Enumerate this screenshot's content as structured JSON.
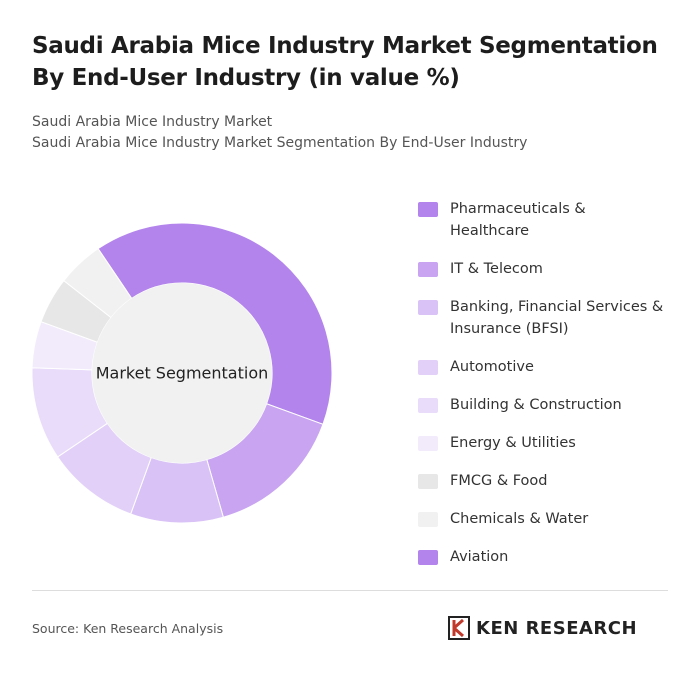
{
  "chart_data": {
    "type": "donut",
    "title": "Saudi Arabia Mice Industry Market Segmentation By End-User Industry (in value %)",
    "subtitle_lines": [
      "Saudi Arabia Mice Industry Market",
      "Saudi Arabia Mice Industry Market Segmentation By End-User Industry"
    ],
    "center_label": "Market Segmentation",
    "categories": [
      "Pharmaceuticals & Healthcare",
      "IT & Telecom",
      "Banking, Financial Services & Insurance (BFSI)",
      "Automotive",
      "Building & Construction",
      "Energy & Utilities",
      "FMCG & Food",
      "Chemicals & Water",
      "Aviation"
    ],
    "values": [
      40,
      15,
      10,
      10,
      10,
      5,
      5,
      5,
      0
    ],
    "colors": [
      "#b384ec",
      "#c8a4f1",
      "#d9c2f6",
      "#e2d0f8",
      "#e9dcfa",
      "#f2ebfc",
      "#e7e7e7",
      "#f1f1f1",
      "#b384ec"
    ],
    "source": "Source: Ken Research Analysis",
    "logo_text": "KEN RESEARCH"
  }
}
